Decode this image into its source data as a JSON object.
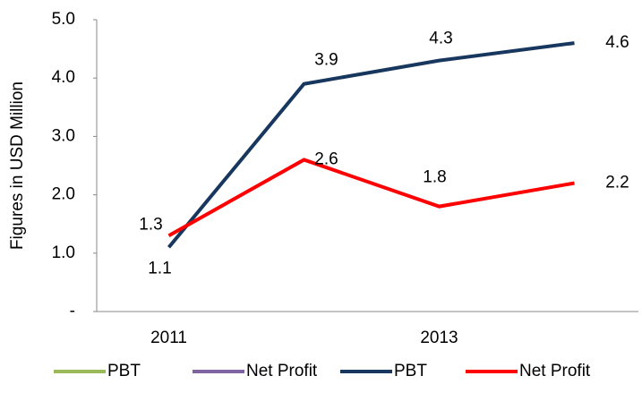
{
  "chart_data": {
    "type": "line",
    "y_label": "Figures in USD Million",
    "categories": [
      "2011",
      null,
      "2013",
      null
    ],
    "series": [
      {
        "name": "PBT",
        "color": "#9bbb59",
        "values": [
          null,
          null,
          null,
          null
        ]
      },
      {
        "name": "Net Profit",
        "color": "#8064a2",
        "values": [
          null,
          null,
          null,
          null
        ]
      },
      {
        "name": "PBT",
        "color": "#17375e",
        "values": [
          1.1,
          3.9,
          4.3,
          4.6
        ]
      },
      {
        "name": "Net Profit",
        "color": "#ff0000",
        "values": [
          1.3,
          2.6,
          1.8,
          2.2
        ]
      }
    ],
    "ylim": [
      0,
      5
    ],
    "yticks": [
      {
        "value": 0,
        "label": "-"
      },
      {
        "value": 1,
        "label": "1.0"
      },
      {
        "value": 2,
        "label": "2.0"
      },
      {
        "value": 3,
        "label": "3.0"
      },
      {
        "value": 4,
        "label": "4.0"
      },
      {
        "value": 5,
        "label": "5.0"
      }
    ],
    "legend": "bottom",
    "grid": false
  }
}
